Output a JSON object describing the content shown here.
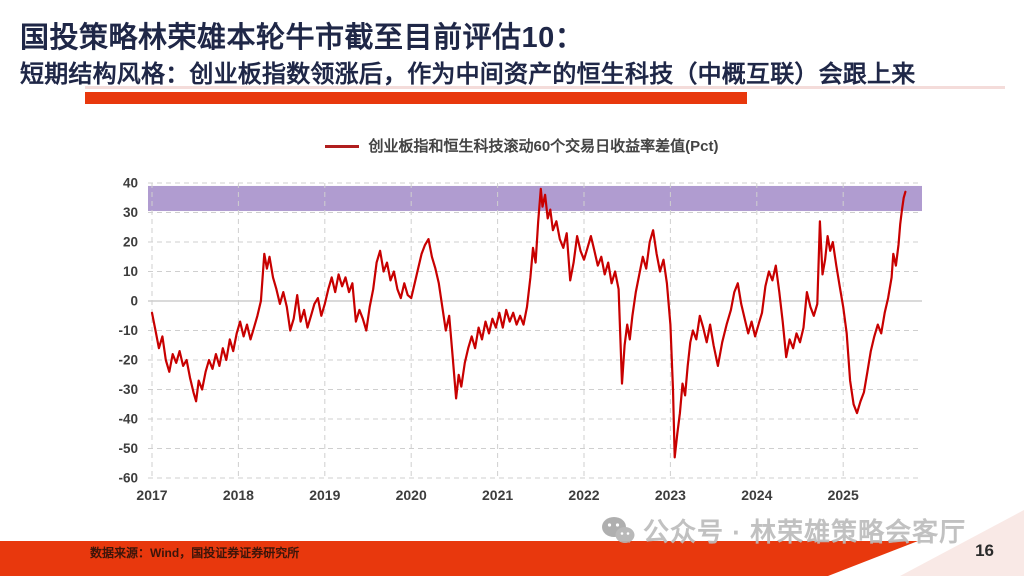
{
  "slide": {
    "title": "国投策略林荣雄本轮牛市截至目前评估10：",
    "subtitle": "短期结构风格：创业板指数领涨后，作为中间资产的恒生科技（中概互联）会跟上来",
    "source_note": "数据来源：Wind，国投证券证券研究所",
    "watermark": "公众号 · 林荣雄策略会客厅",
    "page_number": "16",
    "accent_red": "#e8380d",
    "title_navy": "#1f2747"
  },
  "chart_data": {
    "type": "line",
    "title": "创业板指和恒生科技滚动60个交易日收益率差值(Pct)",
    "legend_position": "top",
    "grid": true,
    "line_color": "#c80000",
    "grid_color": "#cfcfcf",
    "zero_line_color": "#b5b5b5",
    "label_color": "#3d3d3d",
    "highlight_band": {
      "from": 30.5,
      "to": 39,
      "color": "#b09cd0"
    },
    "ylim": [
      -60,
      40
    ],
    "xlim": [
      2016.95,
      2025.91
    ],
    "y_ticks": [
      40,
      30,
      20,
      10,
      0,
      -10,
      -20,
      -30,
      -40,
      -50,
      -60
    ],
    "x_ticks": [
      "2017",
      "2018",
      "2019",
      "2020",
      "2021",
      "2022",
      "2023",
      "2024",
      "2025"
    ],
    "series": [
      {
        "name": "创业板指和恒生科技滚动60个交易日收益率差值(Pct)",
        "points": [
          [
            2017.0,
            -4
          ],
          [
            2017.04,
            -10
          ],
          [
            2017.08,
            -16
          ],
          [
            2017.12,
            -12
          ],
          [
            2017.16,
            -20
          ],
          [
            2017.2,
            -24
          ],
          [
            2017.24,
            -18
          ],
          [
            2017.28,
            -21
          ],
          [
            2017.32,
            -17
          ],
          [
            2017.36,
            -22
          ],
          [
            2017.4,
            -20
          ],
          [
            2017.44,
            -26
          ],
          [
            2017.48,
            -31
          ],
          [
            2017.51,
            -34
          ],
          [
            2017.54,
            -27
          ],
          [
            2017.58,
            -30
          ],
          [
            2017.62,
            -24
          ],
          [
            2017.66,
            -20
          ],
          [
            2017.7,
            -23
          ],
          [
            2017.74,
            -18
          ],
          [
            2017.78,
            -22
          ],
          [
            2017.82,
            -16
          ],
          [
            2017.86,
            -20
          ],
          [
            2017.9,
            -13
          ],
          [
            2017.94,
            -17
          ],
          [
            2017.98,
            -11
          ],
          [
            2018.02,
            -7
          ],
          [
            2018.06,
            -12
          ],
          [
            2018.1,
            -8
          ],
          [
            2018.14,
            -13
          ],
          [
            2018.18,
            -9
          ],
          [
            2018.22,
            -5
          ],
          [
            2018.26,
            0
          ],
          [
            2018.3,
            16
          ],
          [
            2018.33,
            11
          ],
          [
            2018.36,
            15
          ],
          [
            2018.4,
            8
          ],
          [
            2018.44,
            4
          ],
          [
            2018.48,
            -1
          ],
          [
            2018.52,
            3
          ],
          [
            2018.56,
            -2
          ],
          [
            2018.6,
            -10
          ],
          [
            2018.64,
            -6
          ],
          [
            2018.68,
            2
          ],
          [
            2018.72,
            -7
          ],
          [
            2018.76,
            -3
          ],
          [
            2018.8,
            -9
          ],
          [
            2018.84,
            -5
          ],
          [
            2018.88,
            -1
          ],
          [
            2018.92,
            1
          ],
          [
            2018.96,
            -5
          ],
          [
            2019.0,
            -1
          ],
          [
            2019.04,
            4
          ],
          [
            2019.08,
            8
          ],
          [
            2019.12,
            3
          ],
          [
            2019.16,
            9
          ],
          [
            2019.2,
            5
          ],
          [
            2019.24,
            8
          ],
          [
            2019.28,
            3
          ],
          [
            2019.32,
            6
          ],
          [
            2019.36,
            -7
          ],
          [
            2019.4,
            -3
          ],
          [
            2019.44,
            -6
          ],
          [
            2019.48,
            -10
          ],
          [
            2019.52,
            -2
          ],
          [
            2019.56,
            4
          ],
          [
            2019.6,
            13
          ],
          [
            2019.64,
            17
          ],
          [
            2019.68,
            10
          ],
          [
            2019.72,
            13
          ],
          [
            2019.76,
            7
          ],
          [
            2019.8,
            10
          ],
          [
            2019.84,
            4
          ],
          [
            2019.88,
            1
          ],
          [
            2019.92,
            6
          ],
          [
            2019.96,
            2
          ],
          [
            2020.0,
            1
          ],
          [
            2020.04,
            6
          ],
          [
            2020.08,
            11
          ],
          [
            2020.12,
            16
          ],
          [
            2020.16,
            19
          ],
          [
            2020.2,
            21
          ],
          [
            2020.24,
            15
          ],
          [
            2020.28,
            11
          ],
          [
            2020.32,
            6
          ],
          [
            2020.36,
            -2
          ],
          [
            2020.4,
            -10
          ],
          [
            2020.44,
            -5
          ],
          [
            2020.48,
            -19
          ],
          [
            2020.52,
            -33
          ],
          [
            2020.55,
            -25
          ],
          [
            2020.58,
            -29
          ],
          [
            2020.62,
            -21
          ],
          [
            2020.66,
            -16
          ],
          [
            2020.7,
            -12
          ],
          [
            2020.74,
            -16
          ],
          [
            2020.78,
            -9
          ],
          [
            2020.82,
            -13
          ],
          [
            2020.86,
            -7
          ],
          [
            2020.9,
            -11
          ],
          [
            2020.94,
            -6
          ],
          [
            2020.98,
            -9
          ],
          [
            2021.02,
            -4
          ],
          [
            2021.06,
            -9
          ],
          [
            2021.1,
            -3
          ],
          [
            2021.14,
            -7
          ],
          [
            2021.18,
            -4
          ],
          [
            2021.22,
            -8
          ],
          [
            2021.26,
            -5
          ],
          [
            2021.3,
            -8
          ],
          [
            2021.34,
            -2
          ],
          [
            2021.38,
            8
          ],
          [
            2021.41,
            18
          ],
          [
            2021.44,
            13
          ],
          [
            2021.47,
            27
          ],
          [
            2021.5,
            38
          ],
          [
            2021.52,
            32
          ],
          [
            2021.55,
            36
          ],
          [
            2021.58,
            28
          ],
          [
            2021.61,
            31
          ],
          [
            2021.64,
            24
          ],
          [
            2021.68,
            27
          ],
          [
            2021.72,
            21
          ],
          [
            2021.76,
            18
          ],
          [
            2021.8,
            23
          ],
          [
            2021.84,
            7
          ],
          [
            2021.88,
            13
          ],
          [
            2021.92,
            22
          ],
          [
            2021.96,
            17
          ],
          [
            2022.0,
            14
          ],
          [
            2022.04,
            18
          ],
          [
            2022.08,
            22
          ],
          [
            2022.12,
            17
          ],
          [
            2022.16,
            12
          ],
          [
            2022.2,
            15
          ],
          [
            2022.24,
            9
          ],
          [
            2022.28,
            13
          ],
          [
            2022.32,
            6
          ],
          [
            2022.36,
            10
          ],
          [
            2022.4,
            4
          ],
          [
            2022.44,
            -28
          ],
          [
            2022.47,
            -15
          ],
          [
            2022.5,
            -8
          ],
          [
            2022.53,
            -13
          ],
          [
            2022.56,
            -5
          ],
          [
            2022.6,
            3
          ],
          [
            2022.64,
            9
          ],
          [
            2022.68,
            15
          ],
          [
            2022.72,
            11
          ],
          [
            2022.76,
            20
          ],
          [
            2022.8,
            24
          ],
          [
            2022.84,
            16
          ],
          [
            2022.88,
            10
          ],
          [
            2022.92,
            14
          ],
          [
            2022.96,
            6
          ],
          [
            2023.0,
            -8
          ],
          [
            2023.03,
            -30
          ],
          [
            2023.05,
            -53
          ],
          [
            2023.08,
            -45
          ],
          [
            2023.11,
            -38
          ],
          [
            2023.14,
            -28
          ],
          [
            2023.17,
            -32
          ],
          [
            2023.2,
            -22
          ],
          [
            2023.23,
            -14
          ],
          [
            2023.26,
            -10
          ],
          [
            2023.3,
            -13
          ],
          [
            2023.34,
            -5
          ],
          [
            2023.38,
            -9
          ],
          [
            2023.42,
            -14
          ],
          [
            2023.46,
            -8
          ],
          [
            2023.5,
            -15
          ],
          [
            2023.55,
            -22
          ],
          [
            2023.6,
            -14
          ],
          [
            2023.65,
            -8
          ],
          [
            2023.7,
            -3
          ],
          [
            2023.74,
            3
          ],
          [
            2023.78,
            6
          ],
          [
            2023.82,
            -1
          ],
          [
            2023.86,
            -6
          ],
          [
            2023.9,
            -11
          ],
          [
            2023.94,
            -7
          ],
          [
            2023.98,
            -12
          ],
          [
            2024.02,
            -8
          ],
          [
            2024.06,
            -4
          ],
          [
            2024.1,
            5
          ],
          [
            2024.14,
            10
          ],
          [
            2024.18,
            7
          ],
          [
            2024.22,
            12
          ],
          [
            2024.26,
            3
          ],
          [
            2024.3,
            -7
          ],
          [
            2024.34,
            -19
          ],
          [
            2024.38,
            -13
          ],
          [
            2024.42,
            -16
          ],
          [
            2024.46,
            -11
          ],
          [
            2024.5,
            -14
          ],
          [
            2024.54,
            -9
          ],
          [
            2024.58,
            3
          ],
          [
            2024.62,
            -2
          ],
          [
            2024.66,
            -5
          ],
          [
            2024.7,
            -1
          ],
          [
            2024.73,
            27
          ],
          [
            2024.76,
            9
          ],
          [
            2024.79,
            14
          ],
          [
            2024.82,
            22
          ],
          [
            2024.85,
            17
          ],
          [
            2024.88,
            20
          ],
          [
            2024.92,
            12
          ],
          [
            2024.96,
            5
          ],
          [
            2025.0,
            -2
          ],
          [
            2025.04,
            -11
          ],
          [
            2025.08,
            -27
          ],
          [
            2025.12,
            -35
          ],
          [
            2025.16,
            -38
          ],
          [
            2025.2,
            -34
          ],
          [
            2025.24,
            -31
          ],
          [
            2025.28,
            -24
          ],
          [
            2025.32,
            -17
          ],
          [
            2025.36,
            -12
          ],
          [
            2025.4,
            -8
          ],
          [
            2025.44,
            -11
          ],
          [
            2025.48,
            -4
          ],
          [
            2025.52,
            1
          ],
          [
            2025.56,
            8
          ],
          [
            2025.58,
            16
          ],
          [
            2025.61,
            12
          ],
          [
            2025.64,
            19
          ],
          [
            2025.66,
            26
          ],
          [
            2025.68,
            31
          ],
          [
            2025.7,
            35
          ],
          [
            2025.72,
            37
          ]
        ]
      }
    ]
  }
}
